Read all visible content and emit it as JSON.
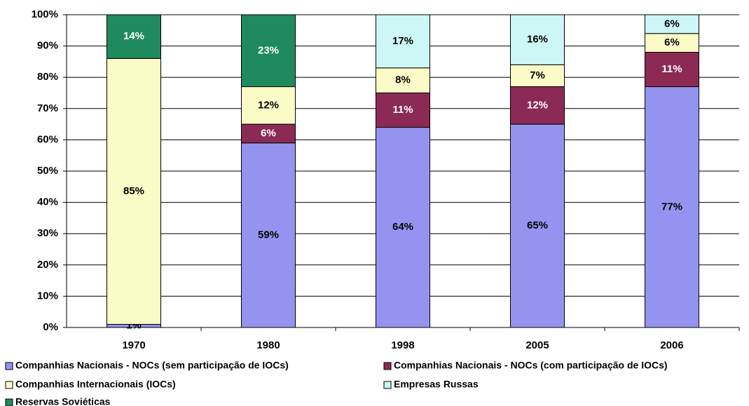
{
  "chart_data": {
    "type": "stacked_bar",
    "categories": [
      "1970",
      "1980",
      "1998",
      "2005",
      "2006"
    ],
    "series": [
      {
        "name": "Companhias Nacionais - NOCs (sem participação de IOCs)",
        "color": "#9494f0",
        "values": [
          1,
          59,
          64,
          65,
          77
        ],
        "value_labels": [
          "1%",
          "59%",
          "64%",
          "65%",
          "77%"
        ]
      },
      {
        "name": "Companhias Nacionais - NOCs (com participação de IOCs)",
        "color": "#8c2a56",
        "values": [
          null,
          6,
          11,
          12,
          11
        ],
        "value_labels": [
          null,
          "6%",
          "11%",
          "12%",
          "11%"
        ]
      },
      {
        "name": "Companhias Internacionais (IOCs)",
        "color": "#fbfbc8",
        "values": [
          85,
          12,
          8,
          7,
          6
        ],
        "value_labels": [
          "85%",
          "12%",
          "8%",
          "7%",
          "6%"
        ]
      },
      {
        "name": "Empresas Russas",
        "color": "#cdf6f6",
        "values": [
          null,
          null,
          17,
          16,
          6
        ],
        "value_labels": [
          null,
          null,
          "17%",
          "16%",
          "6%"
        ]
      },
      {
        "name": "Reservas Soviéticas",
        "color": "#1f8a5e",
        "values": [
          14,
          23,
          null,
          null,
          null
        ],
        "value_labels": [
          "14%",
          "23%",
          null,
          null,
          null
        ]
      }
    ],
    "ylim": [
      0,
      100
    ],
    "yticks": [
      {
        "value": 0,
        "label": "0%"
      },
      {
        "value": 10,
        "label": "10%"
      },
      {
        "value": 20,
        "label": "20%"
      },
      {
        "value": 30,
        "label": "30%"
      },
      {
        "value": 40,
        "label": "40%"
      },
      {
        "value": 50,
        "label": "50%"
      },
      {
        "value": 60,
        "label": "60%"
      },
      {
        "value": 70,
        "label": "70%"
      },
      {
        "value": 80,
        "label": "80%"
      },
      {
        "value": 90,
        "label": "90%"
      },
      {
        "value": 100,
        "label": "100%"
      }
    ],
    "grid": true
  }
}
